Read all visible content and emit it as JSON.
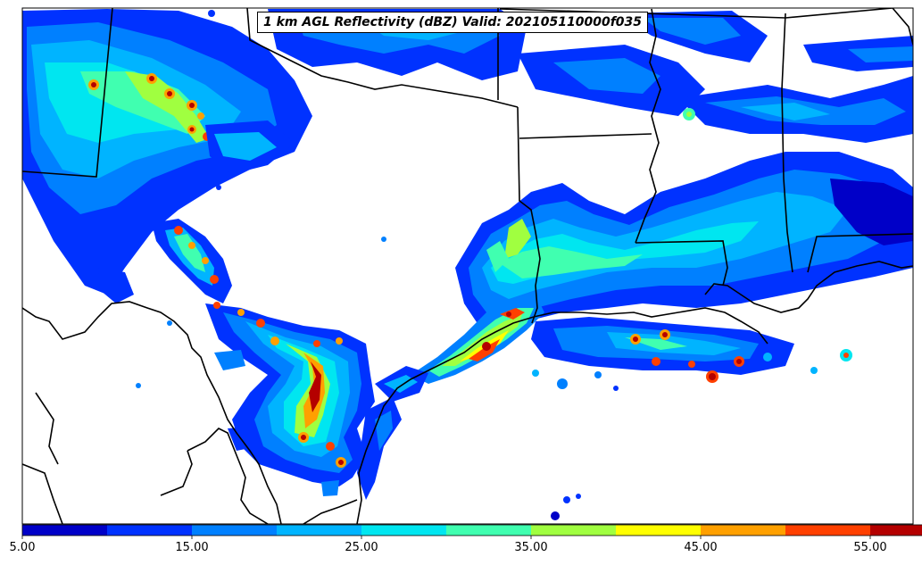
{
  "title": "1 km AGL Reflectivity (dBZ) Valid: 202105110000f035",
  "colorbar": {
    "colors": [
      "#0000c8",
      "#0032ff",
      "#0080ff",
      "#00b4ff",
      "#00e6f0",
      "#40ffb0",
      "#a0ff40",
      "#ffff00",
      "#ffa000",
      "#ff4000",
      "#b40000",
      "#780000"
    ],
    "ticks": [
      "5.00",
      "15.00",
      "25.00",
      "35.00",
      "45.00",
      "55.00"
    ],
    "min": 5,
    "max": 57.5,
    "step": 5
  },
  "legend_symbols": {
    "extend_arrow": "triangle-right-icon"
  }
}
